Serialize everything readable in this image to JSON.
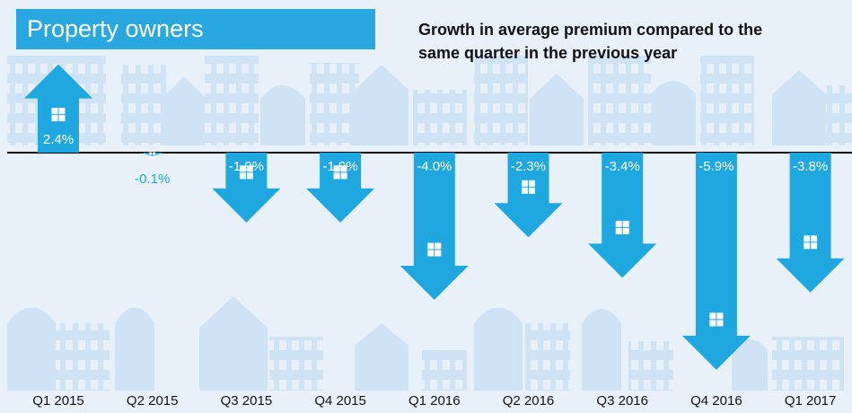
{
  "chart_data": {
    "type": "arrow-bar",
    "title": "Property owners",
    "subtitle": "Growth in average premium compared to the same quarter in the previous year",
    "categories": [
      "Q1 2015",
      "Q2 2015",
      "Q3 2015",
      "Q4 2015",
      "Q1 2016",
      "Q2 2016",
      "Q3 2016",
      "Q4 2016",
      "Q1 2017"
    ],
    "values": [
      2.4,
      -0.1,
      -1.9,
      -1.9,
      -4.0,
      -2.3,
      -3.4,
      -5.9,
      -3.8
    ],
    "value_labels": [
      "2.4%",
      "-0.1%",
      "-1.9%",
      "-1.9%",
      "-4.0%",
      "-2.3%",
      "-3.4%",
      "-5.9%",
      "-3.8%"
    ],
    "color": "#1fa7df"
  }
}
